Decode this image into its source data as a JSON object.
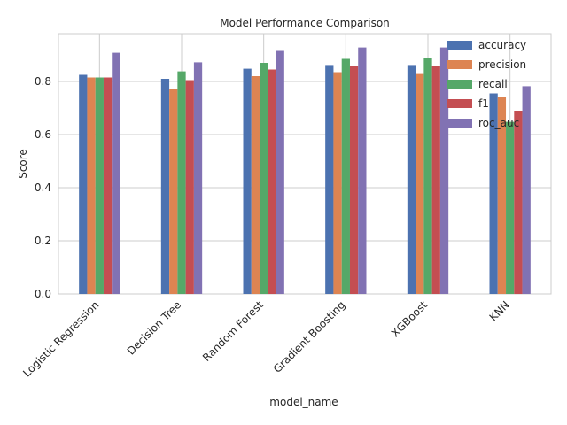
{
  "chart_data": {
    "type": "bar",
    "title": "Model Performance Comparison",
    "xlabel": "model_name",
    "ylabel": "Score",
    "categories": [
      "Logistic Regression",
      "Decision Tree",
      "Random Forest",
      "Gradient Boosting",
      "XGBoost",
      "KNN"
    ],
    "series": [
      {
        "name": "accuracy",
        "color": "#4c72b0",
        "values": [
          0.825,
          0.81,
          0.848,
          0.862,
          0.862,
          0.755
        ]
      },
      {
        "name": "precision",
        "color": "#dd8452",
        "values": [
          0.815,
          0.773,
          0.82,
          0.835,
          0.828,
          0.74
        ]
      },
      {
        "name": "recall",
        "color": "#55a868",
        "values": [
          0.815,
          0.838,
          0.87,
          0.885,
          0.89,
          0.648
        ]
      },
      {
        "name": "f1",
        "color": "#c44e52",
        "values": [
          0.815,
          0.805,
          0.845,
          0.86,
          0.86,
          0.69
        ]
      },
      {
        "name": "roc_auc",
        "color": "#8172b3",
        "values": [
          0.908,
          0.872,
          0.915,
          0.928,
          0.928,
          0.782
        ]
      }
    ],
    "ylim": [
      0,
      0.98
    ],
    "yticks": [
      "0.0",
      "0.2",
      "0.4",
      "0.6",
      "0.8"
    ],
    "grid": true,
    "legend_position": "top-right"
  }
}
